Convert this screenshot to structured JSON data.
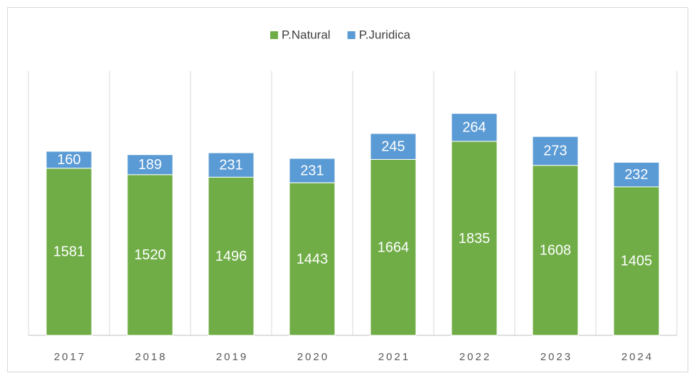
{
  "chart_data": {
    "type": "stacked_bar",
    "categories": [
      "2017",
      "2018",
      "2019",
      "2020",
      "2021",
      "2022",
      "2023",
      "2024"
    ],
    "series": [
      {
        "name": "P.Natural",
        "color": "#70ad47",
        "values": [
          1581,
          1520,
          1496,
          1443,
          1664,
          1835,
          1608,
          1405
        ]
      },
      {
        "name": "P.Juridica",
        "color": "#5b9bd5",
        "values": [
          160,
          189,
          231,
          231,
          245,
          264,
          273,
          232
        ]
      }
    ],
    "ylim": [
      0,
      2500
    ],
    "legend": "top"
  }
}
